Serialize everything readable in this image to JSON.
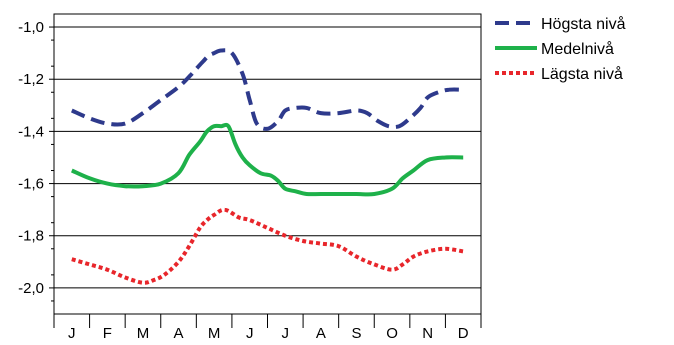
{
  "chart_data": {
    "type": "line",
    "title": "",
    "xlabel": "",
    "ylabel": "",
    "categories": [
      "J",
      "F",
      "M",
      "A",
      "M",
      "J",
      "J",
      "A",
      "S",
      "O",
      "N",
      "D"
    ],
    "ylim": [
      -2.1,
      -0.95
    ],
    "y_ticks": [
      -1.0,
      -1.2,
      -1.4,
      -1.6,
      -1.8,
      -2.0
    ],
    "y_tick_labels": [
      "-1,0",
      "-1,2",
      "-1,4",
      "-1,6",
      "-1,8",
      "-2,0"
    ],
    "grid": "horizontal",
    "legend_position": "right",
    "series": [
      {
        "name": "Högsta nivå",
        "color": "#2e3a8c",
        "style": "dashed",
        "x": [
          1.0,
          1.5,
          2.0,
          2.5,
          3.0,
          3.5,
          4.0,
          4.3,
          4.5,
          4.7,
          4.85,
          5.0,
          5.2,
          5.5,
          5.8,
          6.0,
          6.2,
          6.5,
          6.8,
          7.0,
          7.3,
          7.6,
          8.0,
          8.5,
          9.0,
          9.3,
          9.6,
          9.9,
          10.2,
          10.5,
          10.8,
          11.0,
          11.3,
          11.6,
          12.0
        ],
        "y": [
          -1.32,
          -1.35,
          -1.37,
          -1.37,
          -1.33,
          -1.28,
          -1.23,
          -1.19,
          -1.16,
          -1.13,
          -1.11,
          -1.1,
          -1.09,
          -1.1,
          -1.18,
          -1.28,
          -1.37,
          -1.39,
          -1.36,
          -1.32,
          -1.31,
          -1.31,
          -1.33,
          -1.33,
          -1.32,
          -1.33,
          -1.36,
          -1.38,
          -1.38,
          -1.35,
          -1.31,
          -1.27,
          -1.25,
          -1.24,
          -1.24
        ]
      },
      {
        "name": "Medelnivå",
        "color": "#1eb14a",
        "style": "solid",
        "x": [
          1.0,
          1.5,
          2.0,
          2.5,
          3.0,
          3.5,
          4.0,
          4.3,
          4.6,
          4.8,
          5.0,
          5.2,
          5.4,
          5.6,
          5.8,
          6.0,
          6.3,
          6.6,
          6.8,
          7.0,
          7.3,
          7.6,
          8.0,
          8.5,
          9.0,
          9.5,
          10.0,
          10.3,
          10.6,
          11.0,
          11.5,
          12.0
        ],
        "y": [
          -1.55,
          -1.58,
          -1.6,
          -1.61,
          -1.61,
          -1.6,
          -1.56,
          -1.49,
          -1.44,
          -1.4,
          -1.38,
          -1.38,
          -1.38,
          -1.45,
          -1.5,
          -1.53,
          -1.56,
          -1.57,
          -1.59,
          -1.62,
          -1.63,
          -1.64,
          -1.64,
          -1.64,
          -1.64,
          -1.64,
          -1.62,
          -1.58,
          -1.55,
          -1.51,
          -1.5,
          -1.5
        ]
      },
      {
        "name": "Lägsta nivå",
        "color": "#e8262b",
        "style": "dotted",
        "x": [
          1.0,
          1.5,
          2.0,
          2.5,
          3.0,
          3.3,
          3.6,
          4.0,
          4.3,
          4.6,
          4.8,
          5.0,
          5.3,
          5.7,
          6.0,
          6.5,
          7.0,
          7.5,
          8.0,
          8.5,
          9.0,
          9.5,
          10.0,
          10.3,
          10.6,
          11.0,
          11.5,
          12.0
        ],
        "y": [
          -1.89,
          -1.91,
          -1.93,
          -1.96,
          -1.98,
          -1.97,
          -1.95,
          -1.9,
          -1.84,
          -1.77,
          -1.74,
          -1.72,
          -1.7,
          -1.73,
          -1.74,
          -1.77,
          -1.8,
          -1.82,
          -1.83,
          -1.84,
          -1.88,
          -1.91,
          -1.93,
          -1.91,
          -1.88,
          -1.86,
          -1.85,
          -1.86
        ]
      }
    ]
  }
}
